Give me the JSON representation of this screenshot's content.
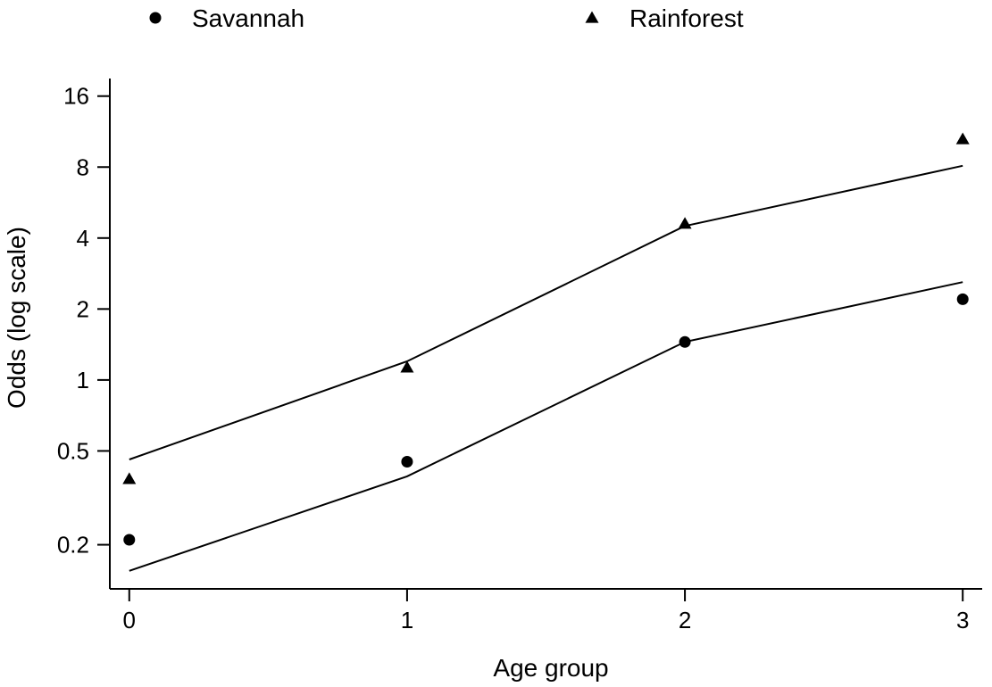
{
  "chart_data": {
    "type": "scatter",
    "title": "",
    "xlabel": "Age group",
    "ylabel": "Odds (log scale)",
    "yscale": "log",
    "xlim": [
      -0.07,
      3.07
    ],
    "ylim": [
      0.13,
      19
    ],
    "x_ticks": [
      0,
      1,
      2,
      3
    ],
    "y_ticks": [
      0.2,
      0.5,
      1,
      2,
      4,
      8,
      16
    ],
    "legend_position": "top",
    "grid": false,
    "series": [
      {
        "name": "Savannah",
        "marker": "circle",
        "points": [
          [
            0,
            0.21
          ],
          [
            1,
            0.45
          ],
          [
            2,
            1.45
          ],
          [
            3,
            2.2
          ]
        ],
        "fit": [
          [
            0,
            0.155
          ],
          [
            1,
            0.39
          ],
          [
            2,
            1.45
          ],
          [
            3,
            2.6
          ]
        ]
      },
      {
        "name": "Rainforest",
        "marker": "triangle",
        "points": [
          [
            0,
            0.38
          ],
          [
            1,
            1.13
          ],
          [
            2,
            4.6
          ],
          [
            3,
            10.5
          ]
        ],
        "fit": [
          [
            0,
            0.46
          ],
          [
            1,
            1.2
          ],
          [
            2,
            4.5
          ],
          [
            3,
            8.1
          ]
        ]
      }
    ],
    "colors": {
      "marker": "#000000",
      "line": "#000000",
      "axis": "#000000"
    }
  }
}
